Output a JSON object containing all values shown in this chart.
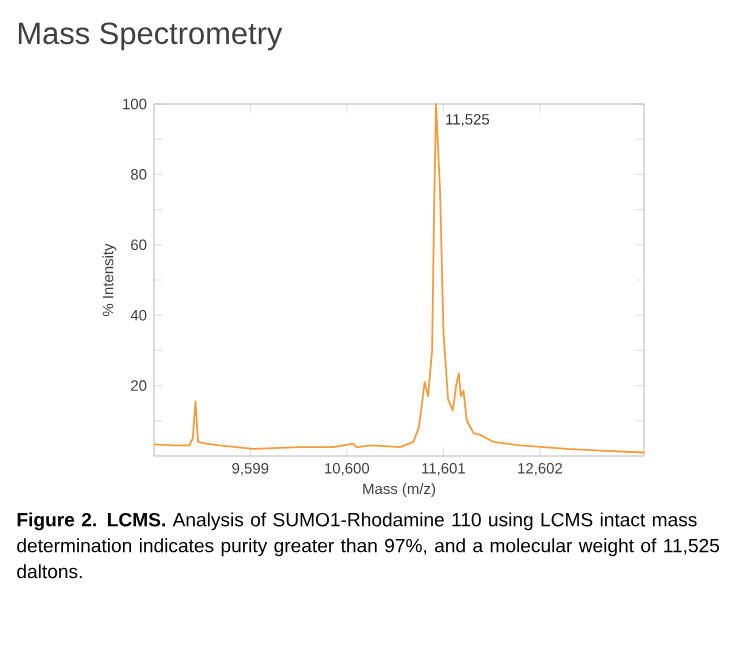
{
  "chart_data": {
    "type": "line",
    "title": "Mass Spectrometry",
    "xlabel": "Mass (m/z)",
    "ylabel": "% Intensity",
    "x": [
      8601,
      8795,
      8968,
      9003,
      9031,
      9058,
      9142,
      9280,
      9627,
      10112,
      10458,
      10666,
      10701,
      10860,
      11151,
      11290,
      11345,
      11380,
      11407,
      11442,
      11484,
      11505,
      11525,
      11567,
      11602,
      11650,
      11699,
      11733,
      11761,
      11782,
      11810,
      11844,
      11914,
      11983,
      12122,
      12399,
      12884,
      13230,
      13681
    ],
    "series": [
      {
        "color": "#f39a3a",
        "values": [
          3.3,
          3,
          3,
          5,
          15.5,
          4,
          3.5,
          3,
          2,
          2.5,
          2.5,
          3.5,
          2.5,
          3,
          2.5,
          4,
          8,
          15,
          21,
          17,
          30,
          70,
          100,
          75,
          35,
          16,
          13,
          20,
          23.5,
          17,
          18.5,
          10,
          6.5,
          6,
          4,
          3,
          2,
          1.5,
          1
        ]
      }
    ],
    "xlim": [
      8601,
      13681
    ],
    "ylim": [
      0,
      100
    ],
    "xticks": [
      {
        "value": 9599,
        "label": "9,599"
      },
      {
        "value": 10600,
        "label": "10,600"
      },
      {
        "value": 11601,
        "label": "11,601"
      },
      {
        "value": 12602,
        "label": "12,602"
      }
    ],
    "yticks": [
      {
        "value": 10,
        "label": null
      },
      20,
      {
        "value": 30,
        "label": null
      },
      40,
      {
        "value": 50,
        "label": null
      },
      60,
      {
        "value": 70,
        "label": null
      },
      80,
      {
        "value": 90,
        "label": null
      },
      100
    ],
    "grid": false,
    "marker": "none",
    "line_style": "solid",
    "annotations": [
      {
        "text": "11,525",
        "x": 11525,
        "y": 100
      },
      "**Figure 2. LCMS.** Analysis of SUMO1-Rhodamine 110 using LCMS intact mass determination indicates purity greater than 97%, and a molecular weight of 11,525 daltons."
    ]
  }
}
